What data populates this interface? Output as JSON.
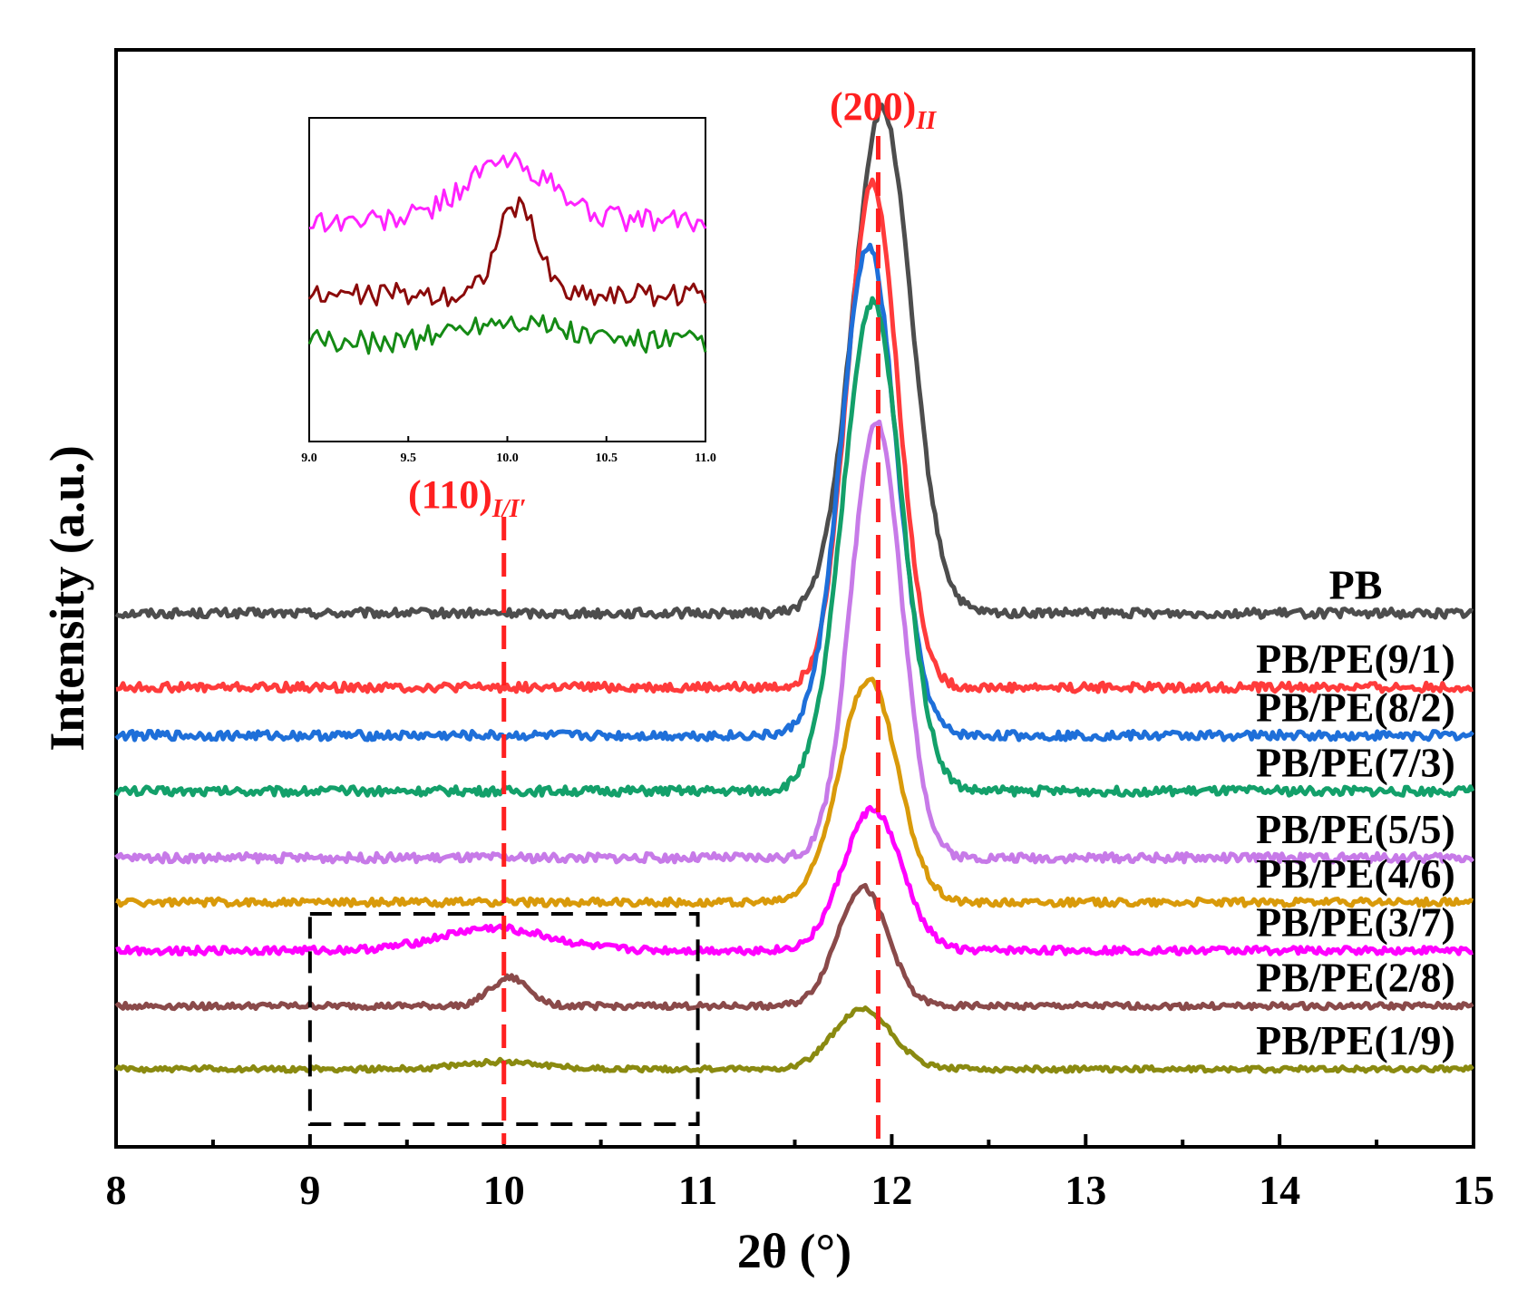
{
  "chart_data": {
    "type": "line",
    "title": "",
    "xlabel": "2θ (°)",
    "ylabel": "Intensity (a.u.)",
    "xlim": [
      8,
      15
    ],
    "xticks": [
      "8",
      "9",
      "10",
      "11",
      "12",
      "13",
      "14",
      "15"
    ],
    "yticks": [],
    "grid": false,
    "legend": "labels placed beside each curve on the right",
    "series": [
      {
        "name": "PB",
        "color": "#4d4d4d",
        "baseline": 10.0,
        "peaks": [
          {
            "center": 11.95,
            "height": 6.8,
            "width": 0.15
          }
        ],
        "noise": 0.12
      },
      {
        "name": "PB/PE(9/1)",
        "color": "#ff3b3b",
        "baseline": 9.0,
        "peaks": [
          {
            "center": 11.9,
            "height": 6.8,
            "width": 0.13
          }
        ],
        "noise": 0.12
      },
      {
        "name": "PB/PE(8/2)",
        "color": "#1e6fd9",
        "baseline": 8.35,
        "peaks": [
          {
            "center": 11.88,
            "height": 6.6,
            "width": 0.14
          }
        ],
        "noise": 0.12
      },
      {
        "name": "PB/PE(7/3)",
        "color": "#13a06a",
        "baseline": 7.6,
        "peaks": [
          {
            "center": 11.9,
            "height": 6.6,
            "width": 0.15
          }
        ],
        "noise": 0.12
      },
      {
        "name": "PB/PE(5/5)",
        "color": "#c77ae8",
        "baseline": 6.7,
        "peaks": [
          {
            "center": 11.92,
            "height": 5.9,
            "width": 0.13
          }
        ],
        "noise": 0.12
      },
      {
        "name": "PB/PE(4/6)",
        "color": "#d99a0a",
        "baseline": 6.1,
        "peaks": [
          {
            "center": 11.88,
            "height": 3.0,
            "width": 0.15
          }
        ],
        "noise": 0.1
      },
      {
        "name": "PB/PE(3/7)",
        "color": "#ff00ff",
        "baseline": 5.45,
        "peaks": [
          {
            "center": 11.9,
            "height": 1.9,
            "width": 0.15
          },
          {
            "center": 9.95,
            "height": 0.3,
            "width": 0.28
          }
        ],
        "noise": 0.1
      },
      {
        "name": "PB/PE(2/8)",
        "color": "#8a4a4a",
        "baseline": 4.7,
        "peaks": [
          {
            "center": 11.85,
            "height": 1.6,
            "width": 0.13
          },
          {
            "center": 10.03,
            "height": 0.38,
            "width": 0.1
          }
        ],
        "noise": 0.08
      },
      {
        "name": "PB/PE(1/9)",
        "color": "#8a8a10",
        "baseline": 3.85,
        "peaks": [
          {
            "center": 11.85,
            "height": 0.8,
            "width": 0.15
          },
          {
            "center": 10.0,
            "height": 0.1,
            "width": 0.2
          }
        ],
        "noise": 0.07
      }
    ],
    "annotations": {
      "peak_200": {
        "text": "(200)",
        "subscript": "II",
        "x": 11.93,
        "color": "#ff2020"
      },
      "peak_110": {
        "text": "(110)",
        "subscript": "I/I′",
        "x": 10.0,
        "color": "#ff2020"
      },
      "zoom_box": {
        "x_range": [
          9,
          11
        ],
        "note": "dashed selection box"
      }
    },
    "inset": {
      "type": "line",
      "xlim": [
        9.0,
        11.0
      ],
      "xticks": [
        "9.0",
        "9.5",
        "10.0",
        "10.5",
        "11.0"
      ],
      "series": [
        {
          "name": "PB/PE(3/7)",
          "color": "#ff22ff",
          "baseline": 3.0,
          "peak_center": 10.0,
          "peak_height": 0.8,
          "peak_width": 0.22
        },
        {
          "name": "PB/PE(2/8)",
          "color": "#8b0a0a",
          "baseline": 2.0,
          "peak_center": 10.05,
          "peak_height": 1.2,
          "peak_width": 0.1
        },
        {
          "name": "PB/PE(1/9)",
          "color": "#148a14",
          "baseline": 1.35,
          "peak_center": 10.0,
          "peak_height": 0.3,
          "peak_width": 0.25
        }
      ]
    }
  }
}
